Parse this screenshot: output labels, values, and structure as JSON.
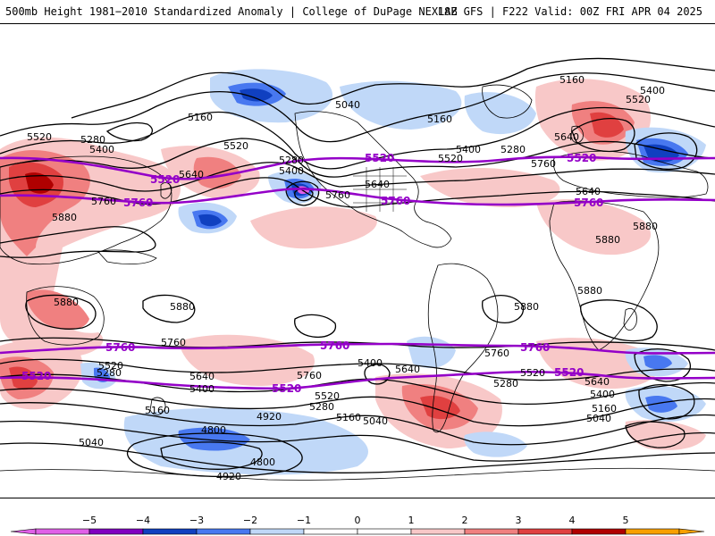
{
  "header": {
    "left_title": "500mb Height 1981−2010 Standardized Anomaly | College of DuPage NEXLAB",
    "right_title": "18Z GFS | F222 Valid: 00Z FRI APR 04 2025"
  },
  "colors": {
    "anom_neg5": "#e060e8",
    "anom_neg4": "#8000c0",
    "anom_neg3": "#1040c0",
    "anom_neg2": "#4878f0",
    "anom_neg1": "#c0d8f8",
    "anom_pos1": "#f8c8c8",
    "anom_pos2": "#f08080",
    "anom_pos3": "#e04040",
    "anom_pos4": "#b00000",
    "anom_pos5": "#f8a000",
    "contour": "#000000",
    "purple_contour": "#9400c8",
    "coast": "#000000"
  },
  "contour_labels": {
    "black": [
      "5160",
      "5280",
      "5400",
      "5520",
      "5640",
      "5760",
      "5880",
      "5040",
      "4920",
      "4800"
    ],
    "purple": [
      "5520",
      "5760"
    ]
  },
  "placed_labels": [
    {
      "t": "5160"
    },
    {
      "t": "5400"
    },
    {
      "t": "5520"
    },
    {
      "t": "5640"
    },
    {
      "t": "5760"
    },
    {
      "t": "5880"
    },
    {
      "t": "5040"
    },
    {
      "t": "5280"
    },
    {
      "t": "4920"
    },
    {
      "t": "4800"
    }
  ],
  "colorbar": {
    "ticks": [
      "−5",
      "−4",
      "−3",
      "−2",
      "−1",
      "0",
      "1",
      "2",
      "3",
      "4",
      "5"
    ],
    "segment_colors": [
      "#e060e8",
      "#8000c0",
      "#1040c0",
      "#4878f0",
      "#c0d8f8",
      "#ffffff",
      "#ffffff",
      "#f8c8c8",
      "#f08080",
      "#e04040",
      "#b00000",
      "#f8a000"
    ]
  }
}
